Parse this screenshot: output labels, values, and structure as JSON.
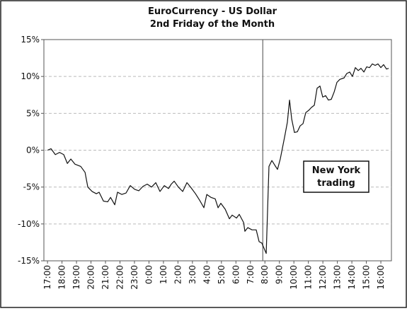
{
  "chart_data": {
    "type": "line",
    "title": "EuroCurrency - US Dollar",
    "subtitle": "2nd Friday of the Month",
    "annotation": [
      "New York",
      "trading"
    ],
    "xlim": [
      -0.25,
      23.73
    ],
    "xticks": [
      {
        "value": 0,
        "label": "17:00"
      },
      {
        "value": 1,
        "label": "18:00"
      },
      {
        "value": 2,
        "label": "19:00"
      },
      {
        "value": 3,
        "label": "20:00"
      },
      {
        "value": 4,
        "label": "21:00"
      },
      {
        "value": 5,
        "label": "22:00"
      },
      {
        "value": 6,
        "label": "23:00"
      },
      {
        "value": 7,
        "label": "0:00"
      },
      {
        "value": 8,
        "label": "1:00"
      },
      {
        "value": 9,
        "label": "2:00"
      },
      {
        "value": 10,
        "label": "3:00"
      },
      {
        "value": 11,
        "label": "4:00"
      },
      {
        "value": 12,
        "label": "5:00"
      },
      {
        "value": 13,
        "label": "6:00"
      },
      {
        "value": 14,
        "label": "7:00"
      },
      {
        "value": 15,
        "label": "8:00"
      },
      {
        "value": 16,
        "label": "9:00"
      },
      {
        "value": 17,
        "label": "10:00"
      },
      {
        "value": 18,
        "label": "11:00"
      },
      {
        "value": 19,
        "label": "12:00"
      },
      {
        "value": 20,
        "label": "13:00"
      },
      {
        "value": 21,
        "label": "14:00"
      },
      {
        "value": 22,
        "label": "15:00"
      },
      {
        "value": 23,
        "label": "16:00"
      }
    ],
    "ylim": [
      -15,
      15
    ],
    "yticks": [
      {
        "value": -15,
        "label": "-15%"
      },
      {
        "value": -10,
        "label": "-10%"
      },
      {
        "value": -5,
        "label": "-5%"
      },
      {
        "value": 0,
        "label": "0%"
      },
      {
        "value": 5,
        "label": "5%"
      },
      {
        "value": 10,
        "label": "10%"
      },
      {
        "value": 15,
        "label": "15%"
      }
    ],
    "grid": true,
    "color": "#111111",
    "x": [
      0,
      0.24,
      0.54,
      0.83,
      1.12,
      1.37,
      1.61,
      1.9,
      2.29,
      2.59,
      2.78,
      3.08,
      3.37,
      3.56,
      3.86,
      4.15,
      4.35,
      4.64,
      4.83,
      5.13,
      5.42,
      5.71,
      6.01,
      6.3,
      6.59,
      6.88,
      7.18,
      7.47,
      7.76,
      8.06,
      8.35,
      8.54,
      8.74,
      9.03,
      9.33,
      9.62,
      9.91,
      10.21,
      10.5,
      10.79,
      10.99,
      11.28,
      11.57,
      11.77,
      11.96,
      12.26,
      12.55,
      12.74,
      13.04,
      13.23,
      13.53,
      13.62,
      13.82,
      14.11,
      14.4,
      14.6,
      14.79,
      15.09,
      15.28,
      15.48,
      15.67,
      15.87,
      16.06,
      16.36,
      16.55,
      16.7,
      16.85,
      17.04,
      17.24,
      17.43,
      17.63,
      17.82,
      18.02,
      18.21,
      18.41,
      18.6,
      18.8,
      18.99,
      19.19,
      19.38,
      19.58,
      19.78,
      19.97,
      20.17,
      20.46,
      20.65,
      20.85,
      21.04,
      21.24,
      21.44,
      21.63,
      21.83,
      22.02,
      22.22,
      22.41,
      22.61,
      22.8,
      23,
      23.19,
      23.39,
      23.54
    ],
    "values": [
      0,
      0.2,
      -0.6,
      -0.3,
      -0.6,
      -1.8,
      -1.2,
      -1.9,
      -2.2,
      -3,
      -5,
      -5.6,
      -5.9,
      -5.7,
      -6.9,
      -7,
      -6.4,
      -7.4,
      -5.7,
      -6,
      -5.8,
      -4.8,
      -5.3,
      -5.5,
      -4.9,
      -4.6,
      -5,
      -4.4,
      -5.6,
      -4.8,
      -5.2,
      -4.6,
      -4.2,
      -5,
      -5.6,
      -4.4,
      -5.1,
      -5.9,
      -6.8,
      -7.8,
      -6,
      -6.4,
      -6.6,
      -7.8,
      -7.2,
      -8,
      -9.3,
      -8.8,
      -9.2,
      -8.7,
      -9.8,
      -11,
      -10.5,
      -10.8,
      -10.8,
      -12.4,
      -12.6,
      -14,
      -2.2,
      -1.4,
      -2,
      -2.6,
      -1.2,
      1.8,
      3.8,
      6.8,
      4.2,
      2.4,
      2.5,
      3.3,
      3.6,
      5.1,
      5.4,
      5.8,
      6.1,
      8.4,
      8.7,
      7.2,
      7.4,
      6.8,
      6.9,
      7.9,
      9.2,
      9.6,
      9.8,
      10.4,
      10.6,
      10,
      11.2,
      10.8,
      11.1,
      10.6,
      11.3,
      11.2,
      11.7,
      11.5,
      11.7,
      11.2,
      11.6,
      11,
      11.1
    ]
  }
}
